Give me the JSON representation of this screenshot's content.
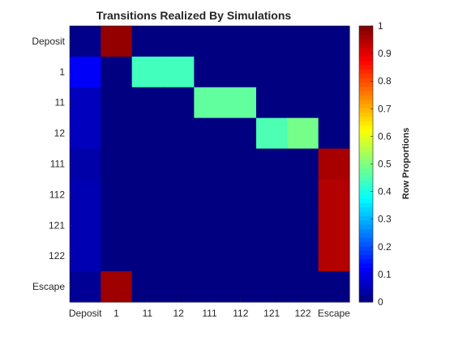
{
  "chart_data": {
    "type": "heatmap",
    "title": "Transitions Realized By Simulations",
    "row_labels": [
      "Deposit",
      "1",
      "11",
      "12",
      "111",
      "112",
      "121",
      "122",
      "Escape"
    ],
    "col_labels": [
      "Deposit",
      "1",
      "11",
      "12",
      "111",
      "112",
      "121",
      "122",
      "Escape"
    ],
    "values": [
      [
        0.01,
        0.98,
        0.0,
        0.0,
        0.0,
        0.0,
        0.0,
        0.0,
        0.0
      ],
      [
        0.12,
        0.0,
        0.44,
        0.44,
        0.0,
        0.0,
        0.0,
        0.0,
        0.0
      ],
      [
        0.06,
        0.0,
        0.0,
        0.0,
        0.47,
        0.47,
        0.0,
        0.0,
        0.0
      ],
      [
        0.06,
        0.0,
        0.0,
        0.0,
        0.0,
        0.0,
        0.45,
        0.49,
        0.0
      ],
      [
        0.04,
        0.0,
        0.0,
        0.0,
        0.0,
        0.0,
        0.0,
        0.0,
        0.96
      ],
      [
        0.05,
        0.0,
        0.0,
        0.0,
        0.0,
        0.0,
        0.0,
        0.0,
        0.95
      ],
      [
        0.05,
        0.0,
        0.0,
        0.0,
        0.0,
        0.0,
        0.0,
        0.0,
        0.95
      ],
      [
        0.05,
        0.0,
        0.0,
        0.0,
        0.0,
        0.0,
        0.0,
        0.0,
        0.95
      ],
      [
        0.02,
        0.97,
        0.0,
        0.0,
        0.0,
        0.0,
        0.0,
        0.0,
        0.0
      ]
    ],
    "colormap": "jet",
    "clim": [
      0,
      1
    ],
    "colorbar": {
      "label": "Row Proportions",
      "ticks": [
        "0",
        "0.1",
        "0.2",
        "0.3",
        "0.4",
        "0.5",
        "0.6",
        "0.7",
        "0.8",
        "0.9",
        "1"
      ],
      "position": "right"
    },
    "grid": false
  }
}
